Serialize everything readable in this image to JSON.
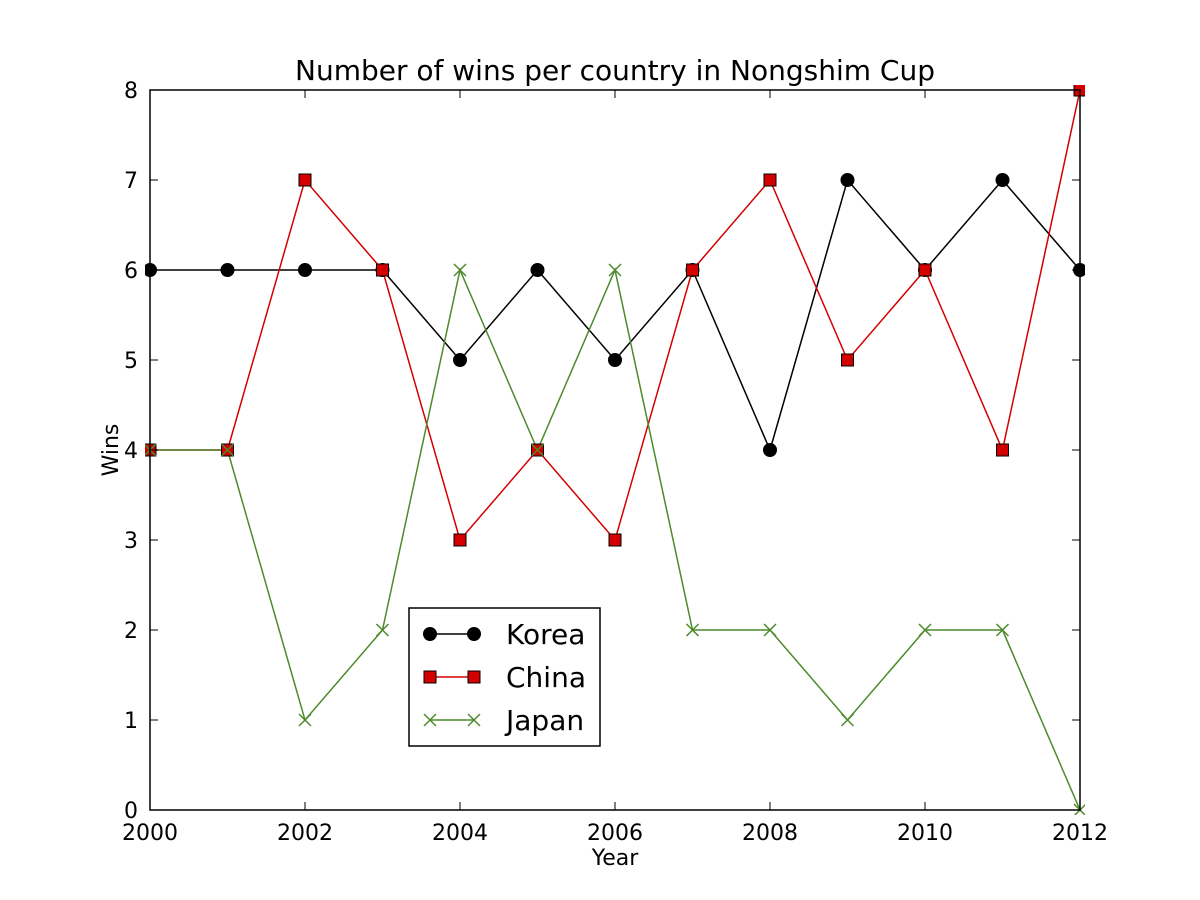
{
  "chart_data": {
    "type": "line",
    "title": "Number of wins per country in Nongshim Cup",
    "xlabel": "Year",
    "ylabel": "Wins",
    "xlim": [
      2000,
      2012
    ],
    "ylim": [
      0,
      8
    ],
    "xticks": [
      "2000",
      "2002",
      "2004",
      "2006",
      "2008",
      "2010",
      "2012"
    ],
    "yticks": [
      "0",
      "1",
      "2",
      "3",
      "4",
      "5",
      "6",
      "7",
      "8"
    ],
    "x": [
      2000,
      2001,
      2002,
      2003,
      2004,
      2005,
      2006,
      2007,
      2008,
      2009,
      2010,
      2011,
      2012
    ],
    "legend_position": "lower-center-left",
    "grid": false,
    "series": [
      {
        "name": "Korea",
        "color": "#000000",
        "marker": "circle",
        "values": [
          6,
          6,
          6,
          6,
          5,
          6,
          5,
          6,
          4,
          7,
          6,
          7,
          6
        ]
      },
      {
        "name": "China",
        "color": "#d40000",
        "marker": "square",
        "values": [
          4,
          4,
          7,
          6,
          3,
          4,
          3,
          6,
          7,
          5,
          6,
          4,
          8
        ]
      },
      {
        "name": "Japan",
        "color": "#4c8a2b",
        "marker": "x",
        "values": [
          4,
          4,
          1,
          2,
          6,
          4,
          6,
          2,
          2,
          1,
          2,
          2,
          0
        ]
      }
    ]
  }
}
